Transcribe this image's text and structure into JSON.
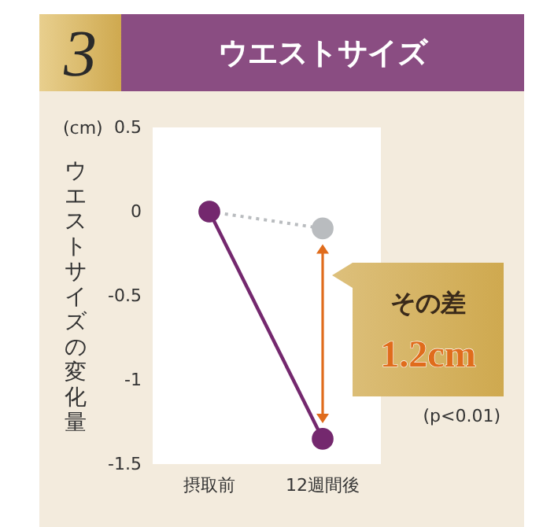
{
  "chart_data": {
    "type": "line",
    "title": "ウエストサイズ",
    "ylabel": "ウエストサイズの変化量",
    "categories": [
      "摂取前",
      "12週間後"
    ],
    "series": [
      {
        "color": "#74286e",
        "values": [
          0,
          -1.35
        ],
        "line_style": "solid"
      },
      {
        "color": "#b9bcbf",
        "values": [
          0,
          -0.1
        ],
        "line_style": "dotted"
      }
    ],
    "ylim": [
      -1.5,
      0.5
    ],
    "yticks": [
      -1.5,
      -1,
      -0.5,
      0,
      0.5
    ],
    "grid": false,
    "marker": "circle",
    "annotations": [
      "3",
      "(cm)",
      "その差",
      "1.2cm",
      "(p<0.01)"
    ]
  }
}
